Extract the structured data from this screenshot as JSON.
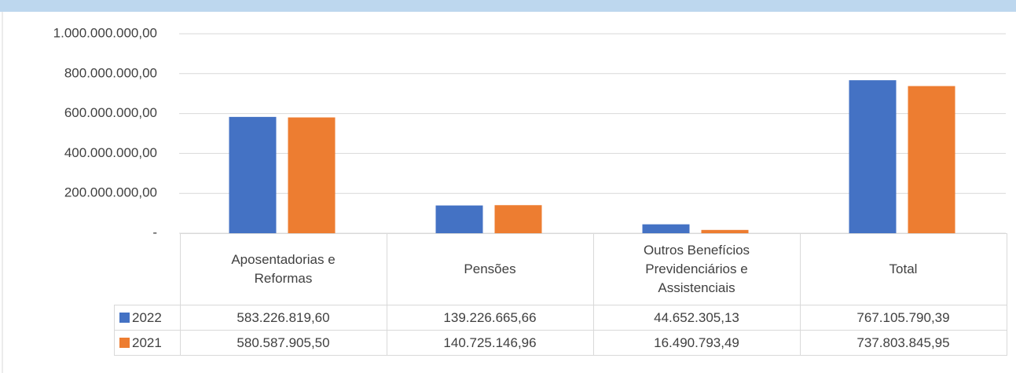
{
  "chart_data": {
    "type": "bar",
    "categories": [
      "Aposentadorias e Reformas",
      "Pensões",
      "Outros Benefícios Previdenciários e Assistenciais",
      "Total"
    ],
    "series": [
      {
        "name": "2022",
        "color": "#4472c4",
        "values": [
          583226819.6,
          139226665.66,
          44652305.13,
          767105790.39
        ],
        "value_labels": [
          "583.226.819,60",
          "139.226.665,66",
          "44.652.305,13",
          "767.105.790,39"
        ]
      },
      {
        "name": "2021",
        "color": "#ed7d31",
        "values": [
          580587905.5,
          140725146.96,
          16490793.49,
          737803845.95
        ],
        "value_labels": [
          "580.587.905,50",
          "140.725.146,96",
          "16.490.793,49",
          "737.803.845,95"
        ]
      }
    ],
    "ylim": [
      0,
      1000000000
    ],
    "yticks": [
      {
        "value": 0,
        "label": "-"
      },
      {
        "value": 200000000,
        "label": "200.000.000,00"
      },
      {
        "value": 400000000,
        "label": "400.000.000,00"
      },
      {
        "value": 600000000,
        "label": "600.000.000,00"
      },
      {
        "value": 800000000,
        "label": "800.000.000,00"
      },
      {
        "value": 1000000000,
        "label": "1.000.000.000,00"
      }
    ],
    "grid": true
  }
}
